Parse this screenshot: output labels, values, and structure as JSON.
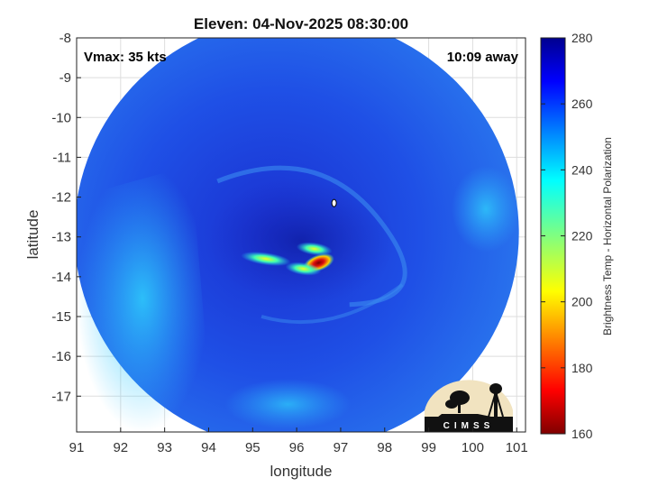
{
  "chart_data": {
    "type": "heatmap",
    "title": "Eleven: 04-Nov-2025 08:30:00",
    "xlabel": "longitude",
    "ylabel": "latitude",
    "xlim": [
      91,
      101.2
    ],
    "ylim": [
      -17.9,
      -8
    ],
    "xticks": [
      91,
      92,
      93,
      94,
      95,
      96,
      97,
      98,
      99,
      100,
      101
    ],
    "yticks": [
      -8,
      -9,
      -10,
      -11,
      -12,
      -13,
      -14,
      -15,
      -16,
      -17
    ],
    "grid": true,
    "annotations": {
      "top_left": "Vmax: 35 kts",
      "top_right": "10:09 away"
    },
    "colorbar": {
      "label": "Brightness Temp - Horizontal Polarization",
      "range": [
        160,
        280
      ],
      "ticks": [
        160,
        180,
        200,
        220,
        240,
        260,
        280
      ],
      "colormap": "jet"
    },
    "data_region": {
      "center_lon": 96.0,
      "center_lat": -12.9,
      "radius_deg": 5.05
    },
    "cold_cloud_features": [
      {
        "lon": 96.5,
        "lat": -13.65,
        "tb": 172
      },
      {
        "lon": 96.15,
        "lat": -13.8,
        "tb": 215
      },
      {
        "lon": 95.3,
        "lat": -13.55,
        "tb": 225
      },
      {
        "lon": 96.4,
        "lat": -13.3,
        "tb": 232
      }
    ],
    "logo_text": "CIMSS"
  },
  "colors": {
    "background": "#ffffff",
    "grid": "#dddddd",
    "frame": "#222222"
  }
}
